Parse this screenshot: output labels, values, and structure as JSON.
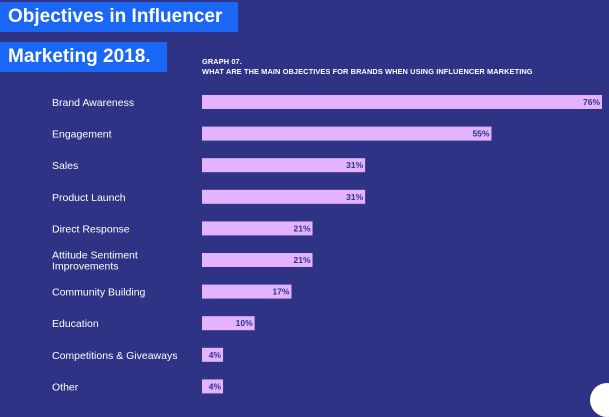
{
  "title": {
    "line1": "Objectives in Influencer",
    "line2": "Marketing 2018."
  },
  "graph": {
    "label": "GRAPH 07.",
    "question": "WHAT ARE THE MAIN OBJECTIVES FOR BRANDS WHEN USING INFLUENCER MARKETING"
  },
  "colors": {
    "background": "#2e3385",
    "title_box": "#1a66f5",
    "bar": "#e3b3ff",
    "value_text": "#2e3385"
  },
  "chart_data": {
    "type": "bar",
    "orientation": "horizontal",
    "title": "WHAT ARE THE MAIN OBJECTIVES FOR BRANDS WHEN USING INFLUENCER MARKETING",
    "categories": [
      [
        "Brand Awareness"
      ],
      [
        "Engagement"
      ],
      [
        "Sales"
      ],
      [
        "Product Launch"
      ],
      [
        "Direct Response"
      ],
      [
        "Attitude Sentiment",
        "Improvements"
      ],
      [
        "Community Building"
      ],
      [
        "Education"
      ],
      [
        "Competitions & Giveaways"
      ],
      [
        "Other"
      ]
    ],
    "values": [
      76,
      55,
      31,
      31,
      21,
      21,
      17,
      10,
      4,
      4
    ],
    "value_labels": [
      "76%",
      "55%",
      "31%",
      "31%",
      "21%",
      "21%",
      "17%",
      "10%",
      "4%",
      "4%"
    ],
    "unit": "%",
    "xlim": [
      0,
      76
    ],
    "grid": false,
    "legend": "none"
  }
}
